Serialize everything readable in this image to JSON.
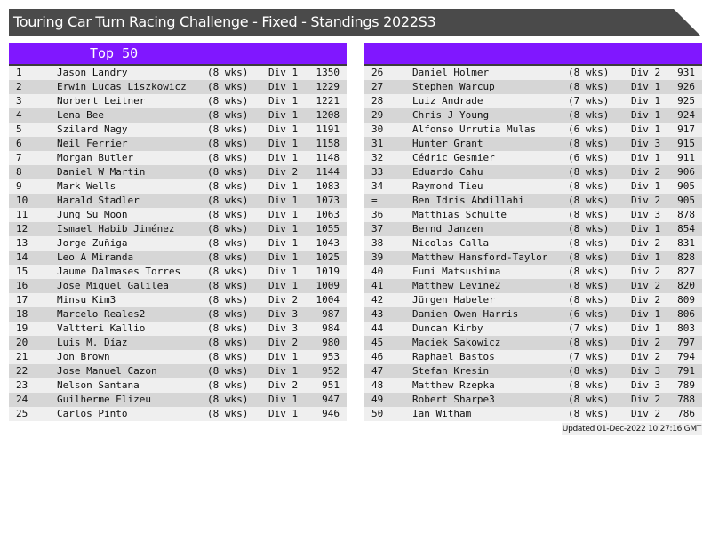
{
  "title": "Touring Car Turn Racing Challenge - Fixed - Standings 2022S3",
  "left_panel": {
    "heading": "Top 50"
  },
  "right_panel": {
    "heading": ""
  },
  "updated": "Updated 01-Dec-2022 10:27:16 GMT",
  "colors": {
    "header": "#8017ff",
    "titlebar": "#4a4a4a"
  },
  "left_rows": [
    [
      "1",
      "Jason Landry",
      "(8 wks)",
      "Div 1",
      "1350"
    ],
    [
      "2",
      "Erwin Lucas Liszkowicz",
      "(8 wks)",
      "Div 1",
      "1229"
    ],
    [
      "3",
      "Norbert Leitner",
      "(8 wks)",
      "Div 1",
      "1221"
    ],
    [
      "4",
      "Lena Bee",
      "(8 wks)",
      "Div 1",
      "1208"
    ],
    [
      "5",
      "Szilard Nagy",
      "(8 wks)",
      "Div 1",
      "1191"
    ],
    [
      "6",
      "Neil Ferrier",
      "(8 wks)",
      "Div 1",
      "1158"
    ],
    [
      "7",
      "Morgan Butler",
      "(8 wks)",
      "Div 1",
      "1148"
    ],
    [
      "8",
      "Daniel W Martin",
      "(8 wks)",
      "Div 2",
      "1144"
    ],
    [
      "9",
      "Mark Wells",
      "(8 wks)",
      "Div 1",
      "1083"
    ],
    [
      "10",
      "Harald Stadler",
      "(8 wks)",
      "Div 1",
      "1073"
    ],
    [
      "11",
      "Jung Su Moon",
      "(8 wks)",
      "Div 1",
      "1063"
    ],
    [
      "12",
      "Ismael Habib Jiménez",
      "(8 wks)",
      "Div 1",
      "1055"
    ],
    [
      "13",
      "Jorge Zuñiga",
      "(8 wks)",
      "Div 1",
      "1043"
    ],
    [
      "14",
      "Leo A Miranda",
      "(8 wks)",
      "Div 1",
      "1025"
    ],
    [
      "15",
      "Jaume Dalmases Torres",
      "(8 wks)",
      "Div 1",
      "1019"
    ],
    [
      "16",
      "Jose Miguel Galilea",
      "(8 wks)",
      "Div 1",
      "1009"
    ],
    [
      "17",
      "Minsu Kim3",
      "(8 wks)",
      "Div 2",
      "1004"
    ],
    [
      "18",
      "Marcelo Reales2",
      "(8 wks)",
      "Div 3",
      "987"
    ],
    [
      "19",
      "Valtteri Kallio",
      "(8 wks)",
      "Div 3",
      "984"
    ],
    [
      "20",
      "Luis M. Díaz",
      "(8 wks)",
      "Div 2",
      "980"
    ],
    [
      "21",
      "Jon Brown",
      "(8 wks)",
      "Div 1",
      "953"
    ],
    [
      "22",
      "Jose Manuel Cazon",
      "(8 wks)",
      "Div 1",
      "952"
    ],
    [
      "23",
      "Nelson Santana",
      "(8 wks)",
      "Div 2",
      "951"
    ],
    [
      "24",
      "Guilherme Elizeu",
      "(8 wks)",
      "Div 1",
      "947"
    ],
    [
      "25",
      "Carlos Pinto",
      "(8 wks)",
      "Div 1",
      "946"
    ]
  ],
  "right_rows": [
    [
      "26",
      "Daniel Holmer",
      "(8 wks)",
      "Div 2",
      "931"
    ],
    [
      "27",
      "Stephen Warcup",
      "(8 wks)",
      "Div 1",
      "926"
    ],
    [
      "28",
      "Luiz Andrade",
      "(7 wks)",
      "Div 1",
      "925"
    ],
    [
      "29",
      "Chris J Young",
      "(8 wks)",
      "Div 1",
      "924"
    ],
    [
      "30",
      "Alfonso Urrutia Mulas",
      "(6 wks)",
      "Div 1",
      "917"
    ],
    [
      "31",
      "Hunter Grant",
      "(8 wks)",
      "Div 3",
      "915"
    ],
    [
      "32",
      "Cédric Gesmier",
      "(6 wks)",
      "Div 1",
      "911"
    ],
    [
      "33",
      "Eduardo Cahu",
      "(8 wks)",
      "Div 2",
      "906"
    ],
    [
      "34",
      "Raymond Tieu",
      "(8 wks)",
      "Div 1",
      "905"
    ],
    [
      "=",
      "Ben Idris Abdillahi",
      "(8 wks)",
      "Div 2",
      "905"
    ],
    [
      "36",
      "Matthias Schulte",
      "(8 wks)",
      "Div 3",
      "878"
    ],
    [
      "37",
      "Bernd Janzen",
      "(8 wks)",
      "Div 1",
      "854"
    ],
    [
      "38",
      "Nicolas Calla",
      "(8 wks)",
      "Div 2",
      "831"
    ],
    [
      "39",
      "Matthew Hansford-Taylor",
      "(8 wks)",
      "Div 1",
      "828"
    ],
    [
      "40",
      "Fumi Matsushima",
      "(8 wks)",
      "Div 2",
      "827"
    ],
    [
      "41",
      "Matthew Levine2",
      "(8 wks)",
      "Div 2",
      "820"
    ],
    [
      "42",
      "Jürgen Habeler",
      "(8 wks)",
      "Div 2",
      "809"
    ],
    [
      "43",
      "Damien Owen Harris",
      "(6 wks)",
      "Div 1",
      "806"
    ],
    [
      "44",
      "Duncan Kirby",
      "(7 wks)",
      "Div 1",
      "803"
    ],
    [
      "45",
      "Maciek Sakowicz",
      "(8 wks)",
      "Div 2",
      "797"
    ],
    [
      "46",
      "Raphael Bastos",
      "(7 wks)",
      "Div 2",
      "794"
    ],
    [
      "47",
      "Stefan Kresin",
      "(8 wks)",
      "Div 3",
      "791"
    ],
    [
      "48",
      "Matthew Rzepka",
      "(8 wks)",
      "Div 3",
      "789"
    ],
    [
      "49",
      "Robert Sharpe3",
      "(8 wks)",
      "Div 2",
      "788"
    ],
    [
      "50",
      "Ian Witham",
      "(8 wks)",
      "Div 2",
      "786"
    ]
  ]
}
